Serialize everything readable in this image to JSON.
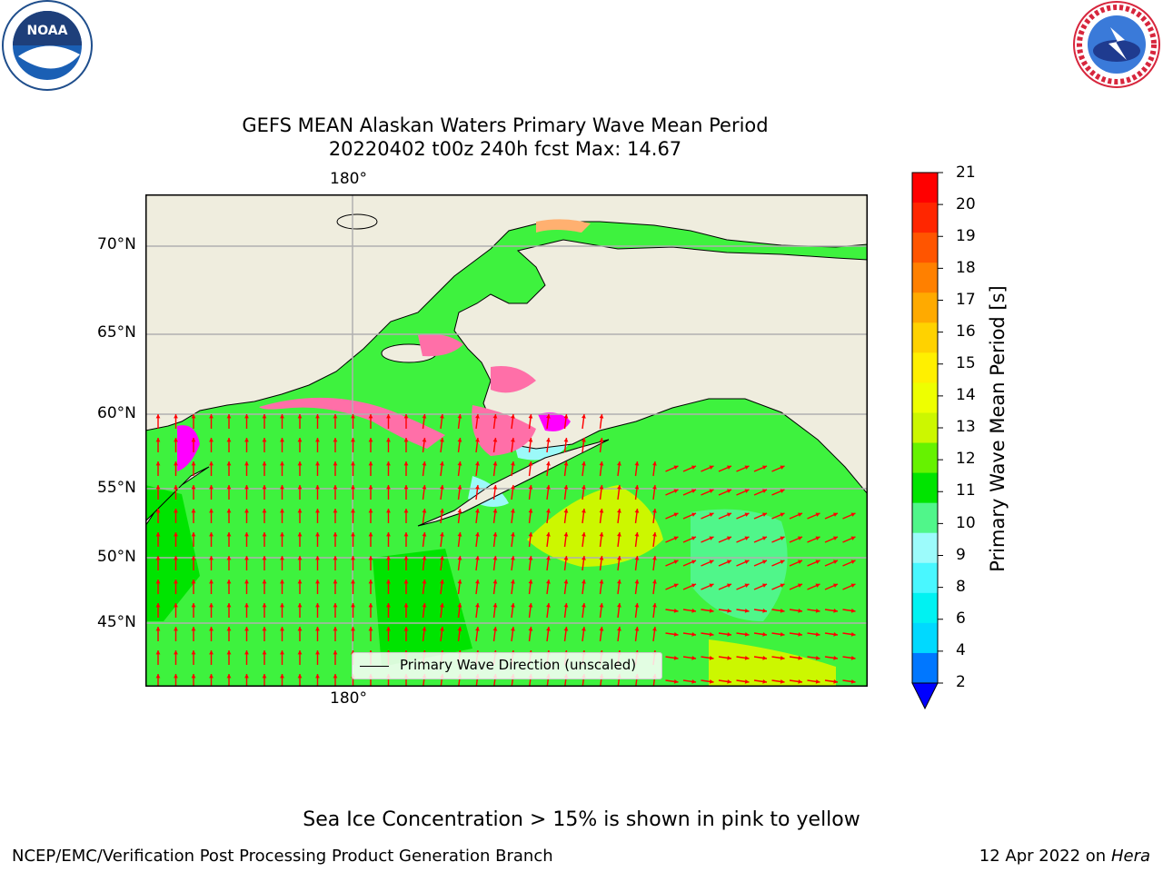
{
  "logos": {
    "left_logo": "NOAA",
    "left_ring_text": "NATIONAL OCEANIC AND ATMOSPHERIC ADMINISTRATION · U.S. DEPARTMENT OF COMMERCE",
    "right_ring_text": "NATIONAL WEATHER SERVICE"
  },
  "title": {
    "line1": "GEFS MEAN Alaskan Waters Primary Wave Mean Period",
    "line2": "20220402 t00z 240h fcst   Max: 14.67"
  },
  "map": {
    "top_lon_label": "180°",
    "bottom_lon_label": "180°",
    "lat_labels": [
      "70°N",
      "65°N",
      "60°N",
      "55°N",
      "50°N",
      "45°N"
    ],
    "legend_label": "Primary Wave Direction (unscaled)",
    "colors": {
      "land": "#efedde",
      "ocean_main": "#3ef23e",
      "ocean_bright": "#00e400",
      "ocean_yellow": "#ccf700",
      "ocean_teal": "#50f68a",
      "ocean_cyan": "#9cf9f9",
      "ice_pink": "#ff6fa8",
      "ice_magenta": "#ff00ff",
      "ice_orange": "#ffb070",
      "arrow": "#ff0000",
      "grid": "#b0b0b0"
    }
  },
  "colorbar": {
    "label": "Primary Wave Mean Period [s]",
    "ticks": [
      "21",
      "20",
      "19",
      "18",
      "17",
      "16",
      "15",
      "14",
      "13",
      "12",
      "11",
      "10",
      "9",
      "8",
      "6",
      "4",
      "2"
    ],
    "colors": [
      "#ff0000",
      "#ff2600",
      "#ff5500",
      "#ff8000",
      "#ffaa00",
      "#ffd200",
      "#fff000",
      "#eeff00",
      "#ccf700",
      "#66f200",
      "#00e400",
      "#50f68a",
      "#9cfbfb",
      "#49f7ff",
      "#00f2f2",
      "#00d9ff",
      "#0077ff"
    ],
    "extend_color": "#0000ff"
  },
  "footer": {
    "note": "Sea Ice Concentration > 15% is shown in pink to yellow",
    "branch": "NCEP/EMC/Verification Post Processing Product Generation Branch",
    "date": "12 Apr 2022 on ",
    "system": "Hera"
  }
}
